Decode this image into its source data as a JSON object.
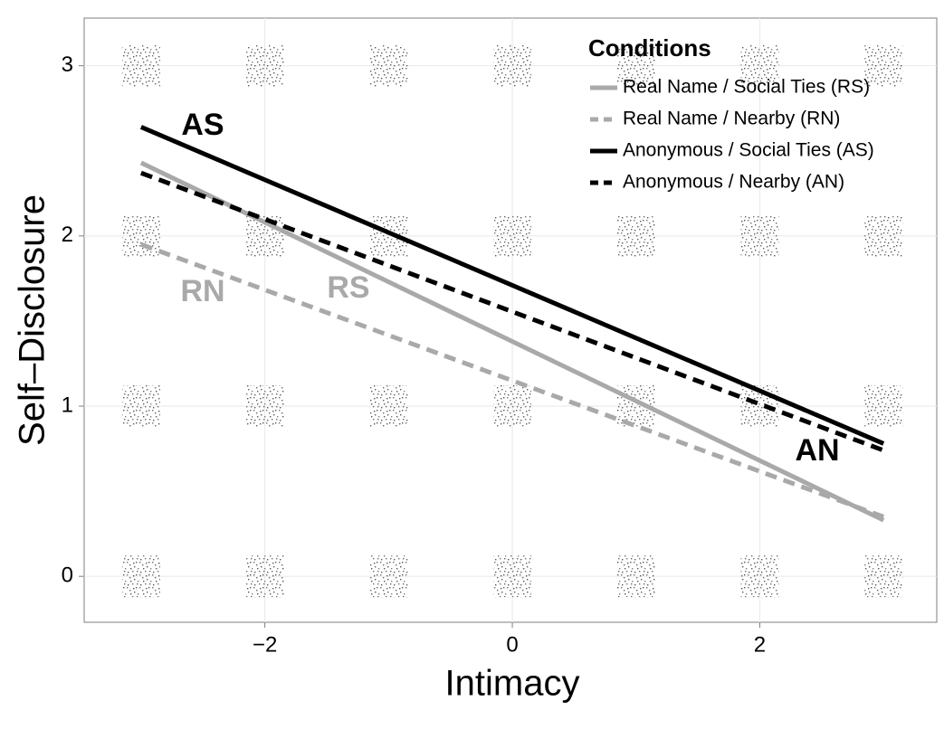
{
  "chart_data": {
    "type": "line",
    "x_label": "Intimacy",
    "y_label": "Self–Disclosure",
    "legend_title": "Conditions",
    "xlim": [
      -3.46,
      3.43
    ],
    "ylim": [
      -0.27,
      3.28
    ],
    "xticks": [
      {
        "value": -2,
        "label": "−2"
      },
      0,
      2
    ],
    "yticks": [
      0,
      1,
      2,
      3
    ],
    "grid": true,
    "legend_position": "top-right",
    "x": [
      -3,
      3
    ],
    "series": [
      {
        "name": "Real Name / Social Ties (RS)",
        "color": "#a9a9a9",
        "dashed": false,
        "values": [
          2.43,
          0.33
        ]
      },
      {
        "name": "Real Name / Nearby (RN)",
        "color": "#a9a9a9",
        "dashed": true,
        "values": [
          1.95,
          0.35
        ]
      },
      {
        "name": "Anonymous / Social Ties (AS)",
        "color": "#000000",
        "dashed": false,
        "values": [
          2.64,
          0.78
        ]
      },
      {
        "name": "Anonymous / Nearby (AN)",
        "color": "#000000",
        "dashed": true,
        "values": [
          2.37,
          0.74
        ]
      }
    ],
    "annotations": [
      {
        "text": "AS",
        "color": "#000000"
      },
      {
        "text": "RS",
        "color": "#a9a9a9"
      },
      {
        "text": "RN",
        "color": "#a9a9a9"
      },
      {
        "text": "AN",
        "color": "#000000"
      }
    ],
    "jitter": {
      "x": [
        -3,
        -2,
        -1,
        0,
        1,
        2,
        3,
        -3,
        -2,
        -1,
        0,
        1,
        2,
        3,
        -3,
        -2,
        -1,
        0,
        1,
        2,
        3,
        -3,
        -2,
        -1,
        0,
        1,
        2,
        3
      ],
      "y": [
        3,
        3,
        3,
        3,
        3,
        3,
        3,
        2,
        2,
        2,
        2,
        2,
        2,
        2,
        1,
        1,
        1,
        1,
        1,
        1,
        1,
        0,
        0,
        0,
        0,
        0,
        0,
        0
      ]
    }
  }
}
